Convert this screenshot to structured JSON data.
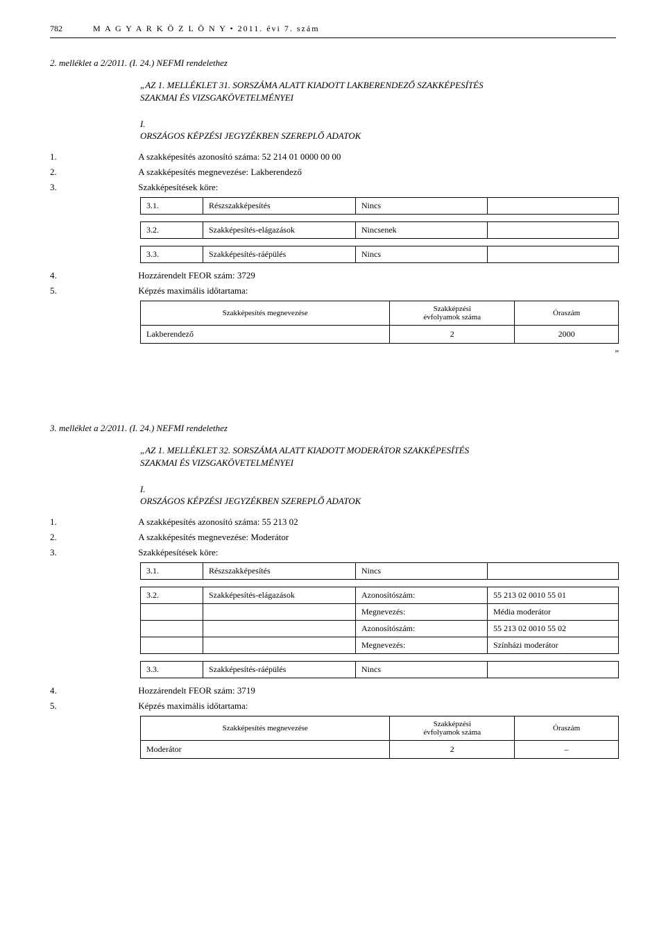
{
  "header": {
    "page_number": "782",
    "journal": "M A G Y A R   K Ö Z L Ö N Y • 2011. évi 7. szám"
  },
  "section2": {
    "attachment_label": "2. melléklet a 2/2011. (I. 24.) NEFMI rendelethez",
    "block_title_a": "„AZ 1. MELLÉKLET 31. SORSZÁMA ALATT KIADOTT LAKBERENDEZŐ SZAKKÉPESÍTÉS",
    "block_title_b": "SZAKMAI ÉS VIZSGAKÖVETELMÉNYEI",
    "roman": "I.",
    "section_heading": "ORSZÁGOS KÉPZÉSI JEGYZÉKBEN SZEREPLŐ ADATOK",
    "item1": {
      "no": "1.",
      "text": "A szakképesítés azonosító száma: 52 214 01 0000 00 00"
    },
    "item2": {
      "no": "2.",
      "text": "A szakképesítés megnevezése: Lakberendező"
    },
    "item3": {
      "no": "3.",
      "text": "Szakképesítések köre:"
    },
    "row31": {
      "no": "3.1.",
      "c2": "Részszakképesítés",
      "c3": "Nincs"
    },
    "row32": {
      "no": "3.2.",
      "c2": "Szakképesítés-elágazások",
      "c3": "Nincsenek"
    },
    "row33": {
      "no": "3.3.",
      "c2": "Szakképesítés-ráépülés",
      "c3": "Nincs"
    },
    "item4": {
      "no": "4.",
      "text": "Hozzárendelt FEOR szám: 3729"
    },
    "item5": {
      "no": "5.",
      "text": "Képzés maximális időtartama:"
    },
    "result_headers": {
      "h1": "Szakképesítés megnevezése",
      "h2": "Szakképzési\névfolyamok száma",
      "h3": "Óraszám"
    },
    "result_row": {
      "name": "Lakberendező",
      "years": "2",
      "hours": "2000"
    },
    "end_quote": "”"
  },
  "section3": {
    "attachment_label": "3. melléklet a 2/2011. (I. 24.) NEFMI rendelethez",
    "block_title_a": "„AZ 1. MELLÉKLET 32. SORSZÁMA ALATT KIADOTT MODERÁTOR SZAKKÉPESÍTÉS",
    "block_title_b": "SZAKMAI ÉS VIZSGAKÖVETELMÉNYEI",
    "roman": "I.",
    "section_heading": "ORSZÁGOS KÉPZÉSI JEGYZÉKBEN SZEREPLŐ ADATOK",
    "item1": {
      "no": "1.",
      "text": "A szakképesítés azonosító száma: 55 213 02"
    },
    "item2": {
      "no": "2.",
      "text": "A szakképesítés megnevezése: Moderátor"
    },
    "item3": {
      "no": "3.",
      "text": "Szakképesítések köre:"
    },
    "row31": {
      "no": "3.1.",
      "c2": "Részszakképesítés",
      "c3": "Nincs"
    },
    "row32": {
      "no": "3.2.",
      "c2": "Szakképesítés-elágazások",
      "r1c3": "Azonosítószám:",
      "r1c4": "55 213 02 0010 55 01",
      "r2c3": "Megnevezés:",
      "r2c4": "Média moderátor",
      "r3c3": "Azonosítószám:",
      "r3c4": "55 213 02 0010 55 02",
      "r4c3": "Megnevezés:",
      "r4c4": "Színházi moderátor"
    },
    "row33": {
      "no": "3.3.",
      "c2": "Szakképesítés-ráépülés",
      "c3": "Nincs"
    },
    "item4": {
      "no": "4.",
      "text": "Hozzárendelt FEOR szám: 3719"
    },
    "item5": {
      "no": "5.",
      "text": "Képzés maximális időtartama:"
    },
    "result_headers": {
      "h1": "Szakképesítés megnevezése",
      "h2": "Szakképzési\névfolyamok száma",
      "h3": "Óraszám"
    },
    "result_row": {
      "name": "Moderátor",
      "years": "2",
      "hours": "–"
    }
  }
}
